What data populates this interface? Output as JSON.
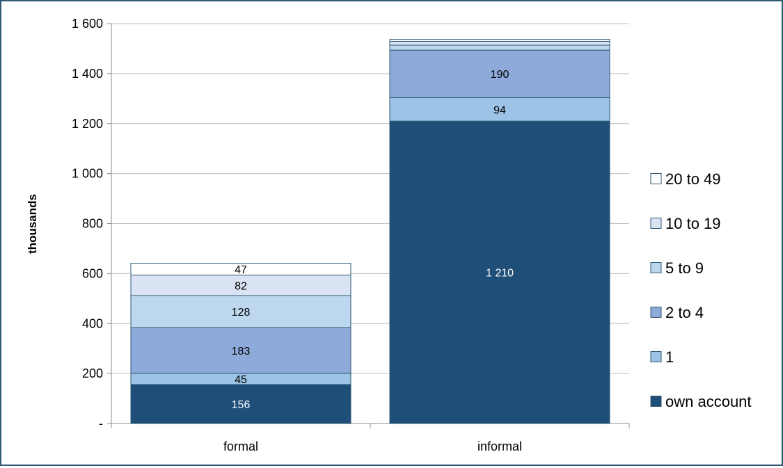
{
  "chart_data": {
    "type": "bar",
    "stacked": true,
    "categories": [
      "formal",
      "informal"
    ],
    "ylabel": "thousands",
    "ylim": [
      0,
      1600
    ],
    "yticks": [
      0,
      200,
      400,
      600,
      800,
      1000,
      1200,
      1400,
      1600
    ],
    "ytick_labels": [
      "-",
      "200",
      "400",
      "600",
      "800",
      "1 000",
      "1 200",
      "1 400",
      "1 600"
    ],
    "grid": true,
    "legend_position": "right",
    "series": [
      {
        "name": "own account",
        "color": "#1f4e79",
        "label_color": "#ffffff",
        "values": [
          156,
          1210
        ],
        "labels": [
          "156",
          "1 210"
        ]
      },
      {
        "name": "1",
        "color": "#9dc3e6",
        "label_color": "#000000",
        "values": [
          45,
          94
        ],
        "labels": [
          "45",
          "94"
        ]
      },
      {
        "name": "2 to 4",
        "color": "#8eaadb",
        "label_color": "#000000",
        "values": [
          183,
          190
        ],
        "labels": [
          "183",
          "190"
        ]
      },
      {
        "name": "5 to 9",
        "color": "#bdd7ee",
        "label_color": "#000000",
        "values": [
          128,
          20
        ],
        "labels": [
          "128",
          ""
        ]
      },
      {
        "name": "10 to 19",
        "color": "#dae3f3",
        "label_color": "#000000",
        "values": [
          82,
          15
        ],
        "labels": [
          "82",
          ""
        ]
      },
      {
        "name": "20 to 49",
        "color": "#ffffff",
        "label_color": "#000000",
        "values": [
          47,
          8
        ],
        "labels": [
          "47",
          ""
        ]
      }
    ],
    "bar_edge_color": "#2e5a73",
    "grid_color": "#bfbfbf"
  }
}
